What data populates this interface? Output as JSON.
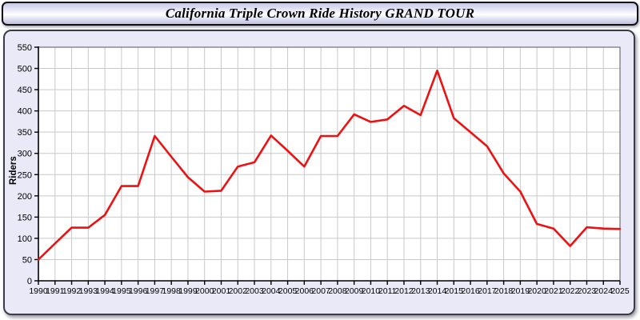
{
  "header": {
    "title": "California Triple Crown Ride History GRAND TOUR"
  },
  "colors": {
    "page_bg": "#ffffff",
    "panel_bg": "#e9e9f8",
    "plot_bg": "#ffffff",
    "grid": "#c9c9c9",
    "axis": "#000000",
    "plot_frame": "#55555f",
    "series_red": "#ee1111",
    "titlebar_border": "#111111"
  },
  "chart_data": {
    "type": "line",
    "title": "California Triple Crown Ride History GRAND TOUR",
    "xlabel": "",
    "ylabel": "Riders",
    "legend": "none",
    "grid": true,
    "ylim": [
      0,
      550
    ],
    "yticks": [
      0,
      50,
      100,
      150,
      200,
      250,
      300,
      350,
      400,
      450,
      500,
      550
    ],
    "x": [
      1990,
      1991,
      1992,
      1993,
      1994,
      1995,
      1996,
      1997,
      1998,
      1999,
      2000,
      2001,
      2002,
      2003,
      2004,
      2005,
      2006,
      2007,
      2008,
      2009,
      2010,
      2011,
      2012,
      2013,
      2014,
      2015,
      2016,
      2017,
      2018,
      2019,
      2020,
      2021,
      2022,
      2023,
      2024,
      2025
    ],
    "series": [
      {
        "name": "Riders",
        "color": "#ee1111",
        "values": [
          50,
          88,
          125,
          125,
          155,
          223,
          223,
          341,
          292,
          244,
          210,
          212,
          269,
          279,
          342,
          306,
          269,
          341,
          341,
          392,
          374,
          380,
          412,
          390,
          495,
          383,
          350,
          317,
          253,
          210,
          134,
          123,
          82,
          126,
          123,
          122
        ]
      }
    ]
  }
}
